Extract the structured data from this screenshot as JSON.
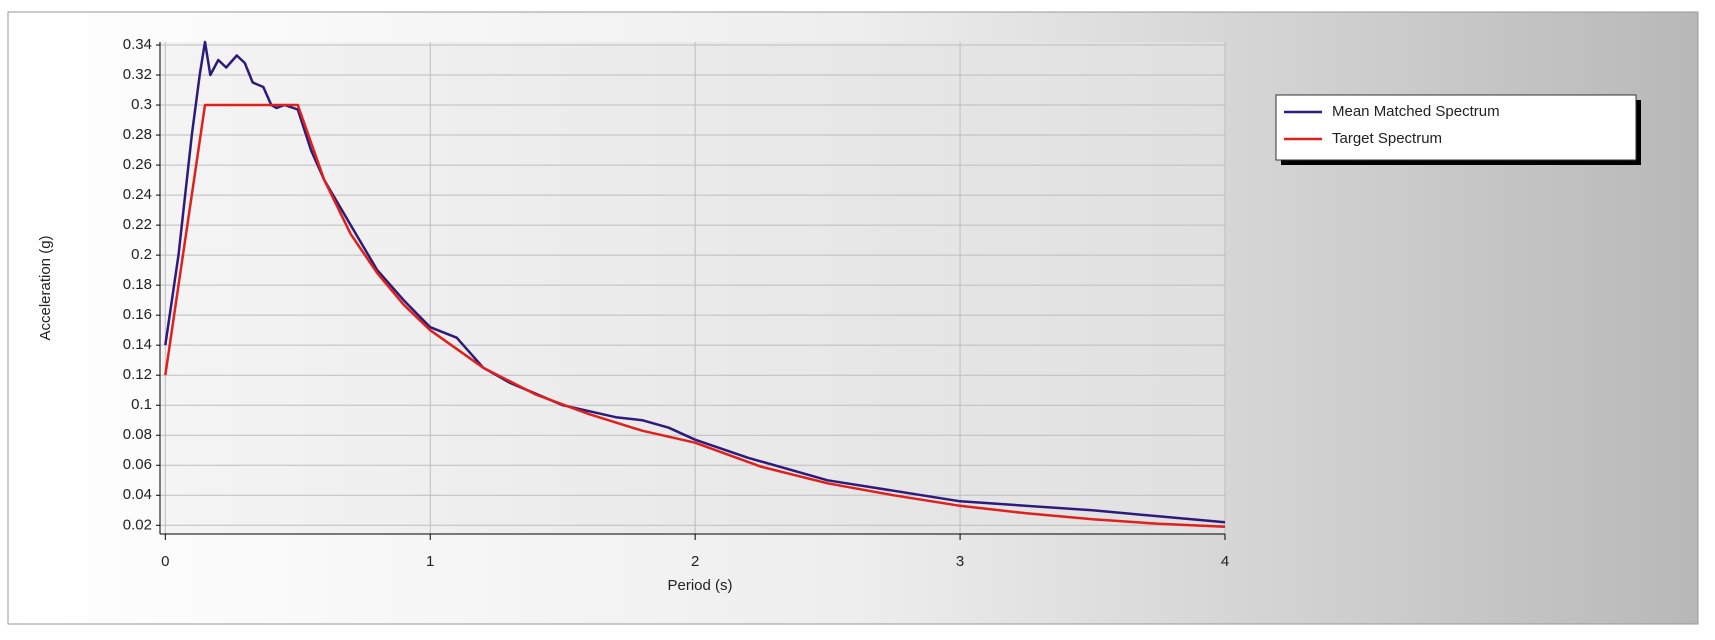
{
  "chart_data": {
    "type": "line",
    "xlabel": "Period (s)",
    "ylabel": "Acceleration (g)",
    "xlim": [
      -0.02,
      4
    ],
    "ylim": [
      0.0142,
      0.342
    ],
    "xticks": [
      0,
      1,
      2,
      3,
      4
    ],
    "yticks": [
      0.02,
      0.04,
      0.06,
      0.08,
      0.1,
      0.12,
      0.14,
      0.16,
      0.18,
      0.2,
      0.22,
      0.24,
      0.26,
      0.28,
      0.3,
      0.32,
      0.34
    ],
    "grid": true,
    "legend": "upper-right-outside",
    "series": [
      {
        "name": "Mean Matched Spectrum",
        "color": "#2e1a7a",
        "x": [
          0,
          0.05,
          0.1,
          0.13,
          0.15,
          0.17,
          0.2,
          0.23,
          0.27,
          0.3,
          0.33,
          0.37,
          0.4,
          0.42,
          0.45,
          0.5,
          0.55,
          0.6,
          0.7,
          0.8,
          0.9,
          1.0,
          1.1,
          1.2,
          1.3,
          1.5,
          1.7,
          1.8,
          1.9,
          2.0,
          2.2,
          2.5,
          3,
          3.5,
          4
        ],
        "values": [
          0.14,
          0.2,
          0.28,
          0.32,
          0.342,
          0.32,
          0.33,
          0.325,
          0.333,
          0.328,
          0.315,
          0.312,
          0.3,
          0.298,
          0.3,
          0.297,
          0.27,
          0.25,
          0.22,
          0.19,
          0.17,
          0.152,
          0.145,
          0.125,
          0.115,
          0.1,
          0.092,
          0.09,
          0.085,
          0.077,
          0.065,
          0.05,
          0.036,
          0.03,
          0.022
        ]
      },
      {
        "name": "Target Spectrum",
        "color": "#e0201c",
        "x": [
          0,
          0.15,
          0.5,
          0.6,
          0.7,
          0.8,
          0.9,
          1.0,
          1.2,
          1.4,
          1.6,
          1.8,
          2.0,
          2.25,
          2.5,
          2.75,
          3.0,
          3.25,
          3.5,
          3.75,
          4
        ],
        "values": [
          0.12,
          0.3,
          0.3,
          0.25,
          0.214,
          0.188,
          0.167,
          0.15,
          0.125,
          0.107,
          0.094,
          0.083,
          0.075,
          0.059,
          0.048,
          0.04,
          0.033,
          0.028,
          0.024,
          0.021,
          0.019
        ]
      }
    ]
  }
}
